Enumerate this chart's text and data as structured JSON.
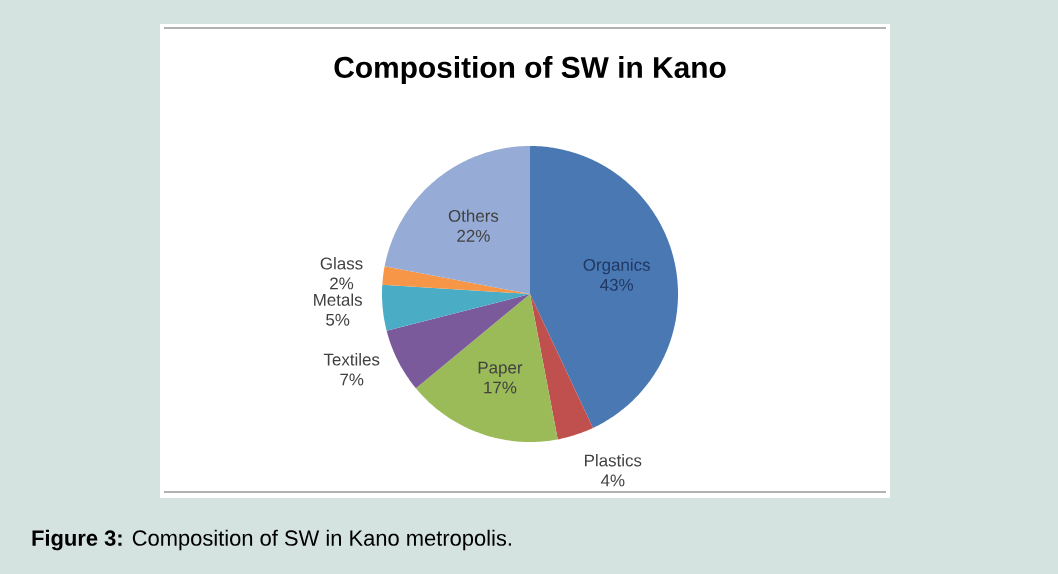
{
  "chart_data": {
    "type": "pie",
    "title": "Composition of SW in Kano",
    "categories": [
      "Organics",
      "Plastics",
      "Paper",
      "Textiles",
      "Metals",
      "Glass",
      "Others"
    ],
    "values": [
      43,
      4,
      17,
      7,
      5,
      2,
      22
    ],
    "value_labels": [
      "43%",
      "4%",
      "17%",
      "7%",
      "5%",
      "2%",
      "22%"
    ],
    "colors": [
      "#4a78b3",
      "#c0504d",
      "#9bbb59",
      "#7b5a9b",
      "#4bacc6",
      "#f79646",
      "#96acd6"
    ],
    "annotations": [
      "**Figure 3:** Composition of SW in Kano metropolis."
    ]
  }
}
